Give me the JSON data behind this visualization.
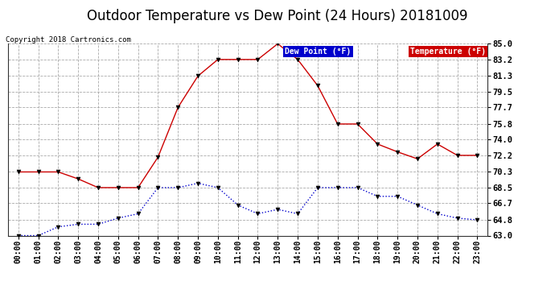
{
  "title": "Outdoor Temperature vs Dew Point (24 Hours) 20181009",
  "copyright": "Copyright 2018 Cartronics.com",
  "background_color": "#ffffff",
  "plot_bg_color": "#ffffff",
  "grid_color": "#aaaaaa",
  "x_labels": [
    "00:00",
    "01:00",
    "02:00",
    "03:00",
    "04:00",
    "05:00",
    "06:00",
    "07:00",
    "08:00",
    "09:00",
    "10:00",
    "11:00",
    "12:00",
    "13:00",
    "14:00",
    "15:00",
    "16:00",
    "17:00",
    "18:00",
    "19:00",
    "20:00",
    "21:00",
    "22:00",
    "23:00"
  ],
  "temperature": [
    70.3,
    70.3,
    70.3,
    69.5,
    68.5,
    68.5,
    68.5,
    72.0,
    77.7,
    81.3,
    83.2,
    83.2,
    83.2,
    85.0,
    83.2,
    80.2,
    75.8,
    75.8,
    73.5,
    72.6,
    71.8,
    73.5,
    72.2,
    72.2
  ],
  "dew_point": [
    63.0,
    63.0,
    64.0,
    64.3,
    64.3,
    65.0,
    65.5,
    68.5,
    68.5,
    69.0,
    68.5,
    66.5,
    65.5,
    66.0,
    65.5,
    68.5,
    68.5,
    68.5,
    67.5,
    67.5,
    66.5,
    65.5,
    65.0,
    64.8
  ],
  "temp_color": "#cc0000",
  "dew_color": "#0000cc",
  "ylim_min": 63.0,
  "ylim_max": 85.0,
  "yticks": [
    63.0,
    64.8,
    66.7,
    68.5,
    70.3,
    72.2,
    74.0,
    75.8,
    77.7,
    79.5,
    81.3,
    83.2,
    85.0
  ],
  "legend_dew_bg": "#0000cc",
  "legend_temp_bg": "#cc0000",
  "legend_text_color": "#ffffff",
  "title_fontsize": 12,
  "tick_fontsize": 7,
  "ytick_fontsize": 7.5
}
